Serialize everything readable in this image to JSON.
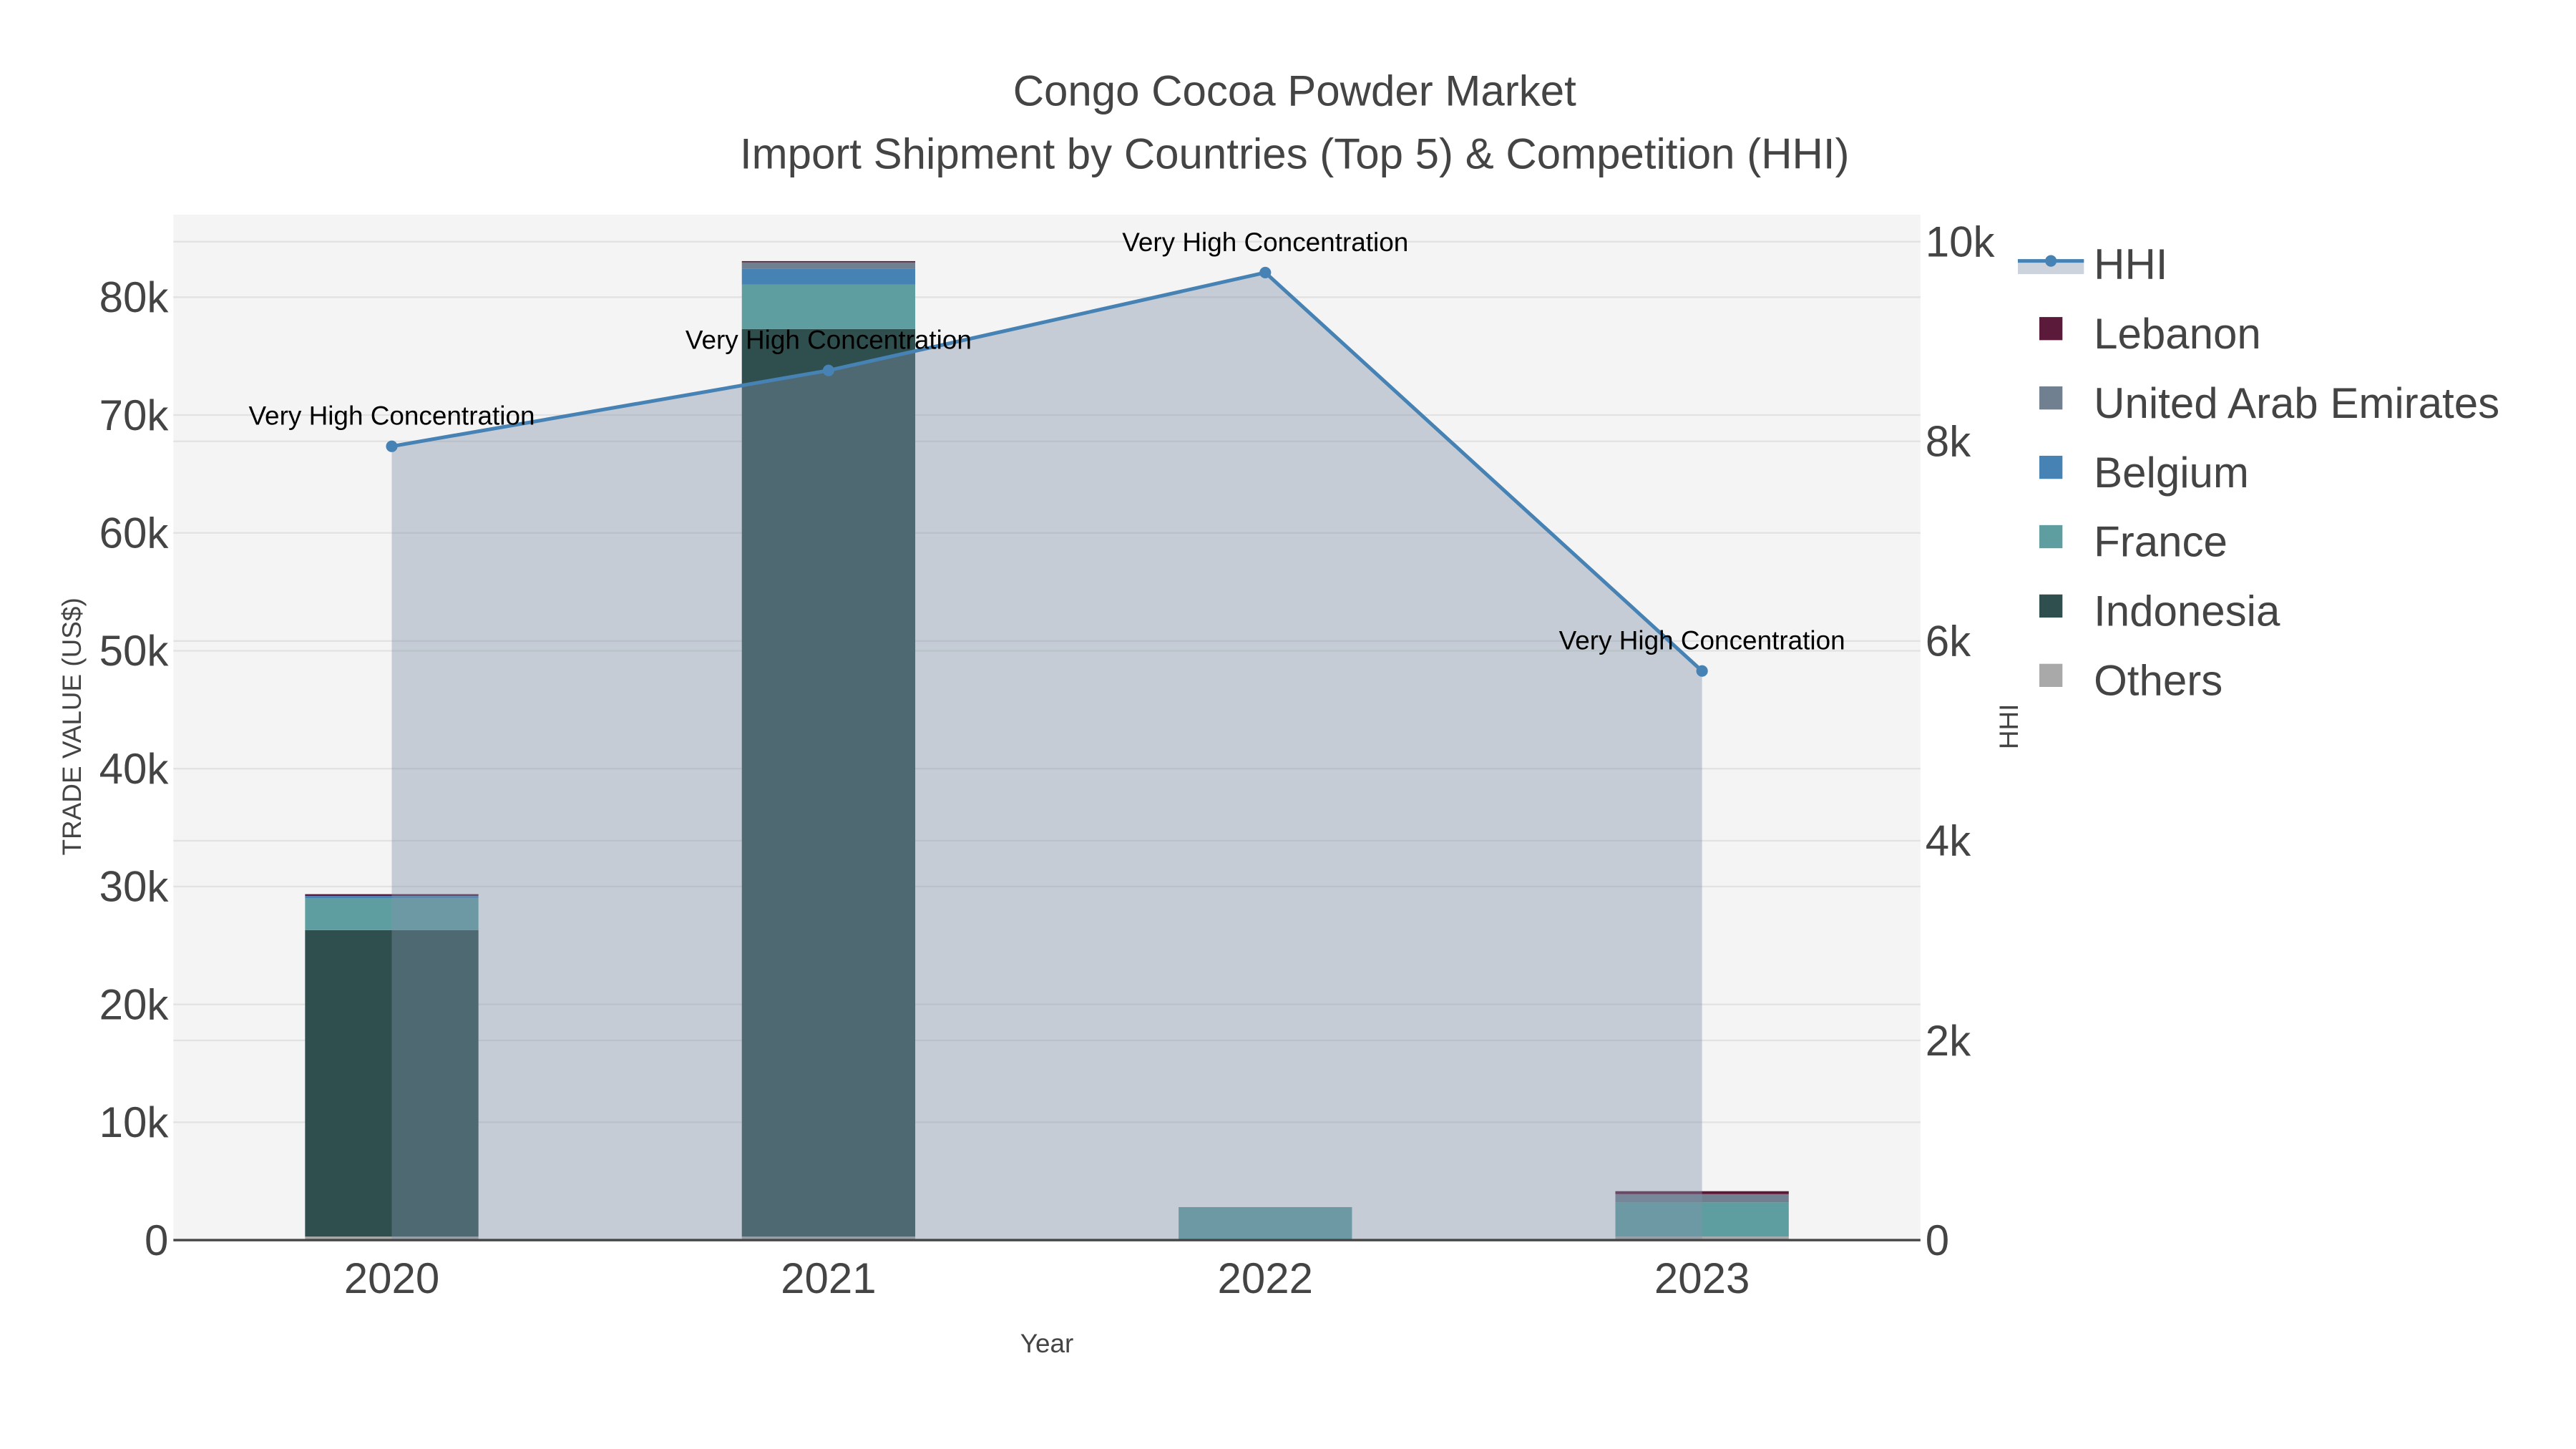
{
  "chart_data": {
    "type": "bar",
    "title": "Congo Cocoa Powder Market",
    "subtitle": "Import Shipment by Countries (Top 5) & Competition (HHI)",
    "xlabel": "Year",
    "ylabel": "TRADE VALUE (US$)",
    "y2label": "HHI",
    "categories": [
      "2020",
      "2021",
      "2022",
      "2023"
    ],
    "ylim": [
      0,
      87000
    ],
    "y2lim": [
      0,
      10270
    ],
    "yticks": [
      0,
      10000,
      20000,
      30000,
      40000,
      50000,
      60000,
      70000,
      80000
    ],
    "ytick_labels": [
      "0",
      "10k",
      "20k",
      "30k",
      "40k",
      "50k",
      "60k",
      "70k",
      "80k"
    ],
    "y2ticks": [
      0,
      2000,
      4000,
      6000,
      8000,
      10000
    ],
    "y2tick_labels": [
      "0",
      "2k",
      "4k",
      "6k",
      "8k",
      "10k"
    ],
    "barmode": "stack",
    "series": [
      {
        "name": "Others",
        "color": "#a9a9a9",
        "values": [
          300,
          300,
          0,
          300
        ]
      },
      {
        "name": "Indonesia",
        "color": "#2f4f4f",
        "values": [
          26000,
          77000,
          0,
          0
        ]
      },
      {
        "name": "France",
        "color": "#5f9ea0",
        "values": [
          2700,
          3760,
          2800,
          2900
        ]
      },
      {
        "name": "Belgium",
        "color": "#4682b4",
        "values": [
          200,
          1350,
          0,
          0
        ]
      },
      {
        "name": "United Arab Emirates",
        "color": "#708090",
        "values": [
          0,
          550,
          0,
          700
        ]
      },
      {
        "name": "Lebanon",
        "color": "#5c1a3a",
        "values": [
          150,
          100,
          0,
          250
        ]
      }
    ],
    "hhi": {
      "name": "HHI",
      "color": "#4682b4",
      "values": [
        7950,
        8710,
        9690,
        5700
      ],
      "annotations": [
        "Very High Concentration",
        "Very High Concentration",
        "Very High Concentration",
        "Very High Concentration"
      ]
    },
    "legend": [
      "HHI",
      "Lebanon",
      "United Arab Emirates",
      "Belgium",
      "France",
      "Indonesia",
      "Others"
    ],
    "legend_position": "right",
    "grid": true
  }
}
